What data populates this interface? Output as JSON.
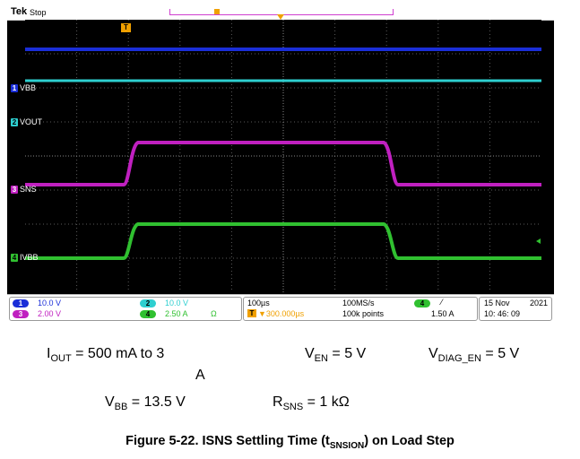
{
  "scope": {
    "brand": "Tek",
    "status": "Stop",
    "trigger_marker": "T",
    "channels": [
      {
        "num": "1",
        "name": "VBB",
        "color": "#1a2ed8"
      },
      {
        "num": "2",
        "name": "VOUT",
        "color": "#2ecfd0"
      },
      {
        "num": "3",
        "name": "SNS",
        "color": "#c020c0"
      },
      {
        "num": "4",
        "name": "IVBB",
        "color": "#30c030"
      }
    ],
    "readouts": {
      "ch1_scale": "10.0 V",
      "ch2_scale": "10.0 V",
      "ch3_scale": "2.00 V",
      "ch4_scale": "2.50 A",
      "ch4_unit_symbol": "Ω",
      "timebase": "100µs",
      "trigger_pos": "▼300.000µs",
      "sample_rate": "100MS/s",
      "record_length": "100k points",
      "trig_channel": "4",
      "trig_slope": "⁄",
      "trig_level": "1.50 A",
      "date": "15 Nov",
      "year": "2021",
      "time": "10: 46: 09"
    }
  },
  "params": {
    "iout_label": "I",
    "iout_sub": "OUT",
    "iout_value": " = 500 mA to 3",
    "iout_value2": "A",
    "ven_label": "V",
    "ven_sub": "EN",
    "ven_value": " = 5 V",
    "vdiag_label": "V",
    "vdiag_sub": "DIAG_EN",
    "vdiag_value": " = 5 V",
    "vbb_label": "V",
    "vbb_sub": "BB",
    "vbb_value": " = 13.5 V",
    "rsns_label": "R",
    "rsns_sub": "SNS",
    "rsns_value": " = 1 kΩ"
  },
  "caption": {
    "prefix": "Figure 5-22. ISNS Settling Time (t",
    "sub": "SNSION",
    "suffix": ") on Load Step"
  }
}
